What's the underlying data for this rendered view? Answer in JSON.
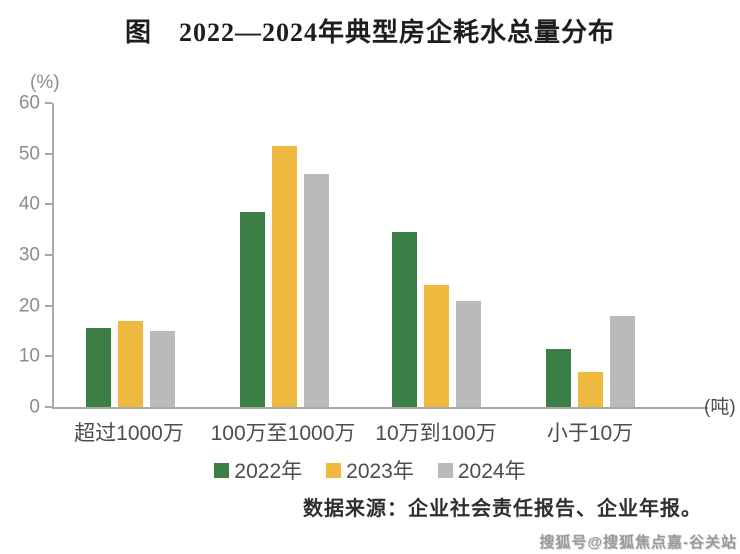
{
  "title": "图　2022—2024年典型房企耗水总量分布",
  "source": "数据来源：企业社会责任报告、企业年报。",
  "watermark": "搜狐号@搜狐焦点嘉-谷关站",
  "chart_data": {
    "type": "bar",
    "title": "图 2022—2024年典型房企耗水总量分布",
    "y_unit": "(%)",
    "x_unit": "(吨)",
    "categories": [
      "超过1000万",
      "100万至1000万",
      "10万到100万",
      "小于10万"
    ],
    "series": [
      {
        "name": "2022年",
        "color": "#3b7e46",
        "values": [
          15.5,
          38.5,
          34.5,
          11.5
        ]
      },
      {
        "name": "2023年",
        "color": "#eeb93f",
        "values": [
          17,
          51.5,
          24,
          7
        ]
      },
      {
        "name": "2024年",
        "color": "#b9babc",
        "values": [
          15,
          46,
          21,
          18
        ]
      }
    ],
    "ylim": [
      0,
      60
    ],
    "yticks": [
      0,
      10,
      20,
      30,
      40,
      50,
      60
    ],
    "grid": false,
    "legend_position": "bottom"
  }
}
